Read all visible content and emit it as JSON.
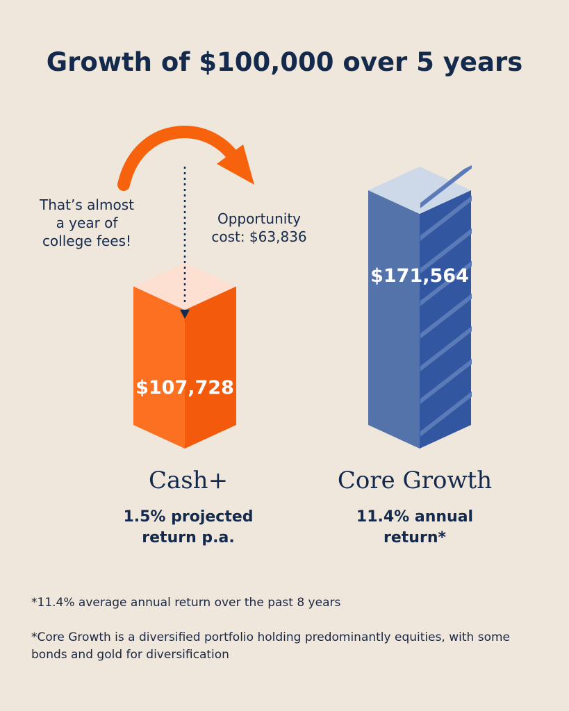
{
  "chart_data": {
    "type": "bar",
    "title": "Growth of $100,000 over 5 years",
    "categories": [
      "Cash+",
      "Core Growth"
    ],
    "values": [
      107728,
      171564
    ],
    "value_labels": [
      "$107,728",
      "$171,564"
    ],
    "subtitles": [
      "1.5% projected return p.a.",
      "11.4% annual return*"
    ],
    "colors": [
      "#f7630c",
      "#3f62a6"
    ],
    "annotations": {
      "opportunity": "Opportunity cost: $63,836",
      "college": "That’s almost a year of college fees!"
    }
  },
  "labels": {
    "cash_sub_1": "1.5% projected",
    "cash_sub_2": "return p.a.",
    "core_sub_1": "11.4% annual",
    "core_sub_2": "return*",
    "college_1": "That’s almost",
    "college_2": "a year of",
    "college_3": "college fees!",
    "opp_1": "Opportunity",
    "opp_2": "cost: $63,836"
  },
  "footnotes": [
    "*11.4% average annual return over the past 8 years",
    "*Core Growth is a diversified portfolio holding predominantly equities, with some bonds and gold for diversification"
  ]
}
